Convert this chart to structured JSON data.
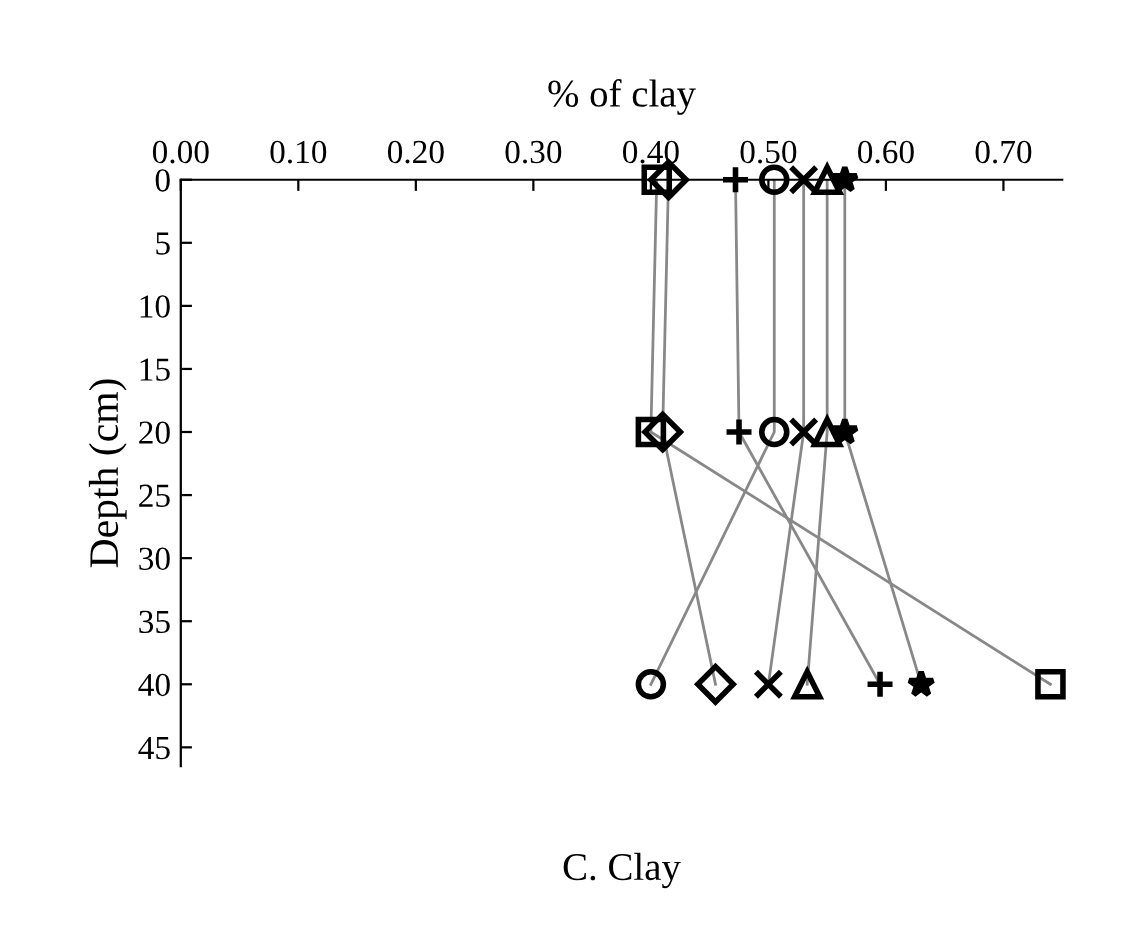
{
  "chart_data": {
    "type": "line",
    "xlabel": "% of clay",
    "ylabel": "Depth (cm)",
    "annotations": [
      "C. Clay"
    ],
    "xlim": [
      0,
      0.75
    ],
    "xticks": [
      {
        "value": 0,
        "label": "0.00"
      },
      {
        "value": 0.1,
        "label": "0.10"
      },
      {
        "value": 0.2,
        "label": "0.20"
      },
      {
        "value": 0.3,
        "label": "0.30"
      },
      {
        "value": 0.4,
        "label": "0.40"
      },
      {
        "value": 0.5,
        "label": "0.50"
      },
      {
        "value": 0.6,
        "label": "0.60"
      },
      {
        "value": 0.7,
        "label": "0.70"
      }
    ],
    "ylim": [
      46.5,
      0
    ],
    "yticks": [
      0,
      5,
      10,
      15,
      20,
      25,
      30,
      35,
      40,
      45
    ],
    "grid": false,
    "legend": false,
    "line_style": "solid",
    "series": [
      {
        "color": "#000000",
        "marker": "square",
        "x": [
          0.405,
          0.4,
          0.74
        ],
        "values": [
          0,
          20,
          40
        ]
      },
      {
        "color": "#000000",
        "marker": "diamond",
        "x": [
          0.415,
          0.41,
          0.455
        ],
        "values": [
          0,
          20,
          40
        ]
      },
      {
        "color": "#000000",
        "marker": "plus",
        "x": [
          0.472,
          0.475,
          0.595
        ],
        "values": [
          0,
          20,
          40
        ]
      },
      {
        "color": "#000000",
        "marker": "circle",
        "x": [
          0.505,
          0.505,
          0.4
        ],
        "values": [
          0,
          20,
          40
        ]
      },
      {
        "color": "#000000",
        "marker": "x",
        "x": [
          0.53,
          0.53,
          0.5
        ],
        "values": [
          0,
          20,
          40
        ]
      },
      {
        "color": "#000000",
        "marker": "triangle",
        "x": [
          0.55,
          0.55,
          0.533
        ],
        "values": [
          0,
          20,
          40
        ]
      },
      {
        "color": "#000000",
        "marker": "star",
        "x": [
          0.565,
          0.565,
          0.63
        ],
        "values": [
          0,
          20,
          40
        ]
      }
    ]
  }
}
